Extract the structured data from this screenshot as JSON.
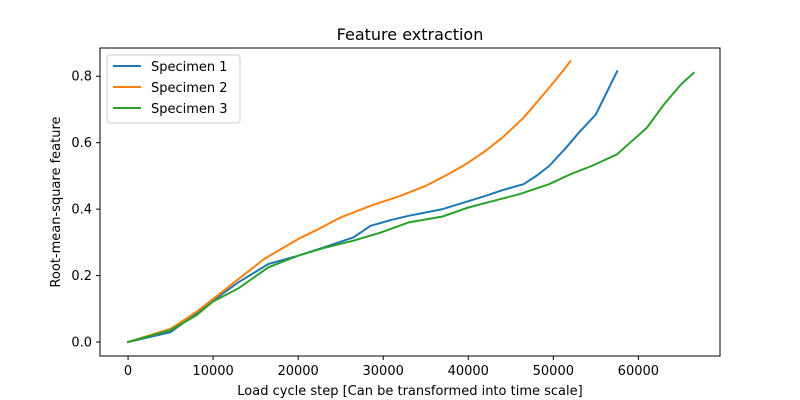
{
  "chart_data": {
    "type": "line",
    "title": "Feature extraction",
    "xlabel": "Load cycle step [Can be transformed into time scale]",
    "ylabel": "Root-mean-square feature",
    "xlim": [
      -3300,
      69600
    ],
    "ylim": [
      -0.042,
      0.885
    ],
    "xticks": [
      0,
      10000,
      20000,
      30000,
      40000,
      50000,
      60000
    ],
    "xtick_labels": [
      "0",
      "10000",
      "20000",
      "30000",
      "40000",
      "50000",
      "60000"
    ],
    "yticks": [
      0.0,
      0.2,
      0.4,
      0.6,
      0.8
    ],
    "ytick_labels": [
      "0.0",
      "0.2",
      "0.4",
      "0.6",
      "0.8"
    ],
    "grid": false,
    "legend_position": "top-left",
    "series": [
      {
        "name": "Specimen 1",
        "color": "#1f77b4",
        "x": [
          0,
          2500,
          5000,
          8000,
          10000,
          13000,
          16500,
          20000,
          23000,
          26500,
          28500,
          31000,
          33000,
          37000,
          40000,
          42000,
          44000,
          46500,
          48000,
          49500,
          51500,
          53000,
          55000,
          57500
        ],
        "y": [
          0.0,
          0.015,
          0.03,
          0.085,
          0.125,
          0.18,
          0.235,
          0.26,
          0.285,
          0.315,
          0.35,
          0.368,
          0.38,
          0.4,
          0.424,
          0.44,
          0.457,
          0.475,
          0.5,
          0.53,
          0.585,
          0.63,
          0.685,
          0.815
        ]
      },
      {
        "name": "Specimen 2",
        "color": "#ff7f0e",
        "x": [
          0,
          5000,
          8000,
          10000,
          13500,
          16000,
          20000,
          22000,
          25000,
          28500,
          32000,
          35000,
          38000,
          40000,
          42000,
          44000,
          46500,
          49500,
          51000,
          52000
        ],
        "y": [
          0.0,
          0.04,
          0.09,
          0.13,
          0.2,
          0.25,
          0.31,
          0.335,
          0.375,
          0.41,
          0.44,
          0.47,
          0.51,
          0.54,
          0.575,
          0.615,
          0.675,
          0.765,
          0.812,
          0.845
        ]
      },
      {
        "name": "Specimen 3",
        "color": "#2ca02c",
        "x": [
          0,
          2500,
          5000,
          8000,
          10000,
          13000,
          16500,
          20000,
          23000,
          26500,
          29500,
          33000,
          37000,
          40000,
          43000,
          46000,
          49500,
          52000,
          54500,
          57500,
          61000,
          63000,
          65000,
          66500
        ],
        "y": [
          0.0,
          0.018,
          0.036,
          0.08,
          0.122,
          0.162,
          0.225,
          0.26,
          0.283,
          0.305,
          0.328,
          0.36,
          0.378,
          0.405,
          0.425,
          0.445,
          0.475,
          0.505,
          0.53,
          0.565,
          0.645,
          0.715,
          0.775,
          0.81
        ]
      }
    ]
  }
}
